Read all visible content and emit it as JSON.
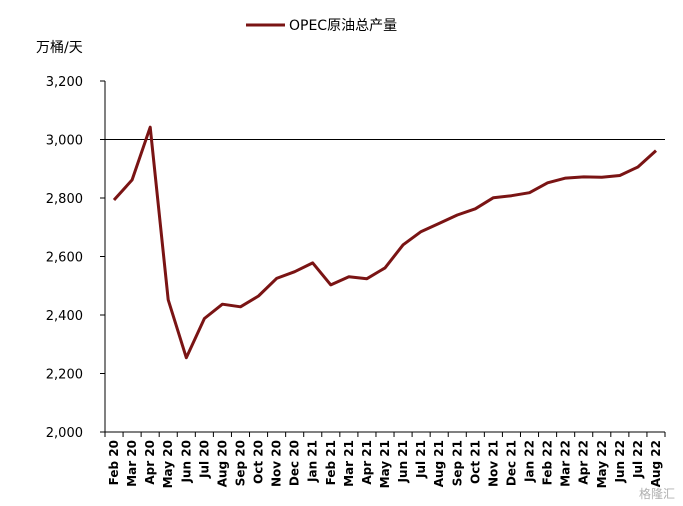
{
  "chart_data": {
    "type": "line",
    "unit_label": "万桶/天",
    "ylim": [
      2000,
      3200
    ],
    "yticks": [
      2000,
      2200,
      2400,
      2600,
      2800,
      3000,
      3200
    ],
    "ytick_labels": [
      "2,000",
      "2,200",
      "2,400",
      "2,600",
      "2,800",
      "3,000",
      "3,200"
    ],
    "reference_line": 3000,
    "legend_position": "top-center",
    "categories": [
      "Feb 20",
      "Mar 20",
      "Apr 20",
      "May 20",
      "Jun 20",
      "Jul 20",
      "Aug 20",
      "Sep 20",
      "Oct 20",
      "Nov 20",
      "Dec 20",
      "Jan 21",
      "Feb 21",
      "Mar 21",
      "Apr 21",
      "May 21",
      "Jun 21",
      "Jul 21",
      "Aug 21",
      "Sep 21",
      "Oct 21",
      "Nov 21",
      "Dec 21",
      "Jan 22",
      "Feb 22",
      "Mar 22",
      "Apr 22",
      "May 22",
      "Jun 22",
      "Jul 22",
      "Aug 22"
    ],
    "series": [
      {
        "name": "OPEC原油总产量",
        "color": "#7a1414",
        "values": [
          2793,
          2862,
          3042,
          2452,
          2254,
          2388,
          2437,
          2428,
          2465,
          2525,
          2548,
          2578,
          2503,
          2531,
          2524,
          2561,
          2640,
          2685,
          2713,
          2742,
          2763,
          2801,
          2808,
          2818,
          2852,
          2868,
          2872,
          2871,
          2877,
          2906,
          2962
        ]
      }
    ]
  },
  "watermark": "格隆汇"
}
